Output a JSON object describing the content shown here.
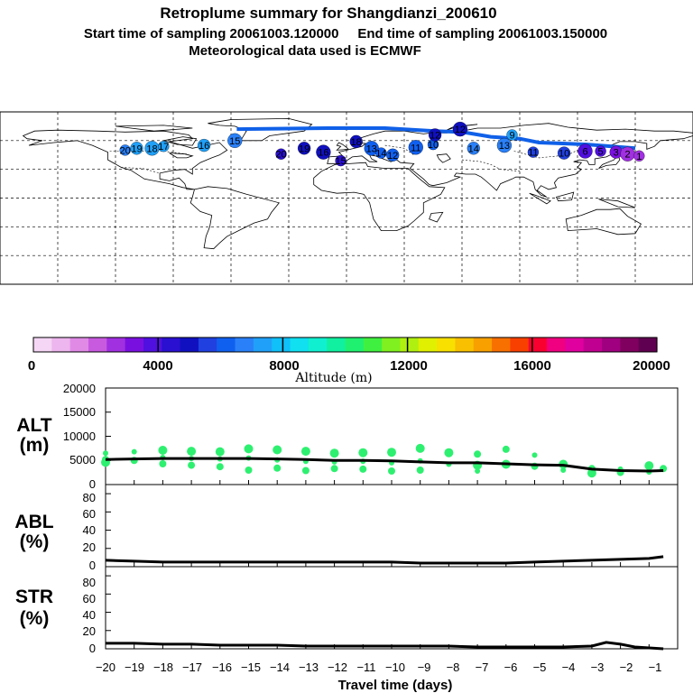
{
  "title": {
    "line1": "Retroplume summary for Shangdianzi_200610",
    "line2": "Start time of sampling 20061003.120000     End time of sampling 20061003.150000",
    "line3": "Meteorological data used is ECMWF"
  },
  "map": {
    "plume_points": [
      {
        "label": "20",
        "lon": -115,
        "lat": 50,
        "alt": 7000
      },
      {
        "label": "19",
        "lon": -109,
        "lat": 52,
        "alt": 7200
      },
      {
        "label": "18",
        "lon": -101,
        "lat": 52,
        "alt": 7100
      },
      {
        "label": "17",
        "lon": -95,
        "lat": 54,
        "alt": 7300
      },
      {
        "label": "16",
        "lon": -74,
        "lat": 55,
        "alt": 7200
      },
      {
        "label": "15",
        "lon": -58,
        "lat": 60,
        "alt": 7000
      },
      {
        "label": "20",
        "lon": -34,
        "lat": 46,
        "alt": 4400
      },
      {
        "label": "19",
        "lon": -22,
        "lat": 52,
        "alt": 5200
      },
      {
        "label": "16",
        "lon": -12,
        "lat": 48,
        "alt": 5000
      },
      {
        "label": "15",
        "lon": -3,
        "lat": 39,
        "alt": 4700
      },
      {
        "label": "18",
        "lon": 5,
        "lat": 59,
        "alt": 4900
      },
      {
        "label": "13",
        "lon": 13,
        "lat": 52,
        "alt": 6300
      },
      {
        "label": "14",
        "lon": 18,
        "lat": 47,
        "alt": 6000
      },
      {
        "label": "12",
        "lon": 24,
        "lat": 45,
        "alt": 5900
      },
      {
        "label": "11",
        "lon": 36,
        "lat": 53,
        "alt": 6000
      },
      {
        "label": "10",
        "lon": 45,
        "lat": 56,
        "alt": 6300
      },
      {
        "label": "12",
        "lon": 46,
        "lat": 66,
        "alt": 5000
      },
      {
        "label": "12",
        "lon": 59,
        "lat": 72,
        "alt": 4800
      },
      {
        "label": "9",
        "lon": 86,
        "lat": 66,
        "alt": 7200
      },
      {
        "label": "14",
        "lon": 66,
        "lat": 52,
        "alt": 6800
      },
      {
        "label": "13",
        "lon": 82,
        "lat": 55,
        "alt": 6500
      },
      {
        "label": "11",
        "lon": 97,
        "lat": 48,
        "alt": 5800
      },
      {
        "label": "10",
        "lon": 113,
        "lat": 47,
        "alt": 5500
      },
      {
        "label": "6",
        "lon": 124,
        "lat": 49,
        "alt": 4000
      },
      {
        "label": "5",
        "lon": 132,
        "lat": 49,
        "alt": 3800
      },
      {
        "label": "3",
        "lon": 140,
        "lat": 48,
        "alt": 3200
      },
      {
        "label": "2",
        "lon": 146,
        "lat": 46,
        "alt": 2900
      },
      {
        "label": "1",
        "lon": 152,
        "lat": 44,
        "alt": 2800
      }
    ]
  },
  "colorbar": {
    "ticks": [
      "0",
      "4000",
      "8000",
      "12000",
      "16000",
      "20000"
    ],
    "label": "Altitude (m)"
  },
  "panels": {
    "alt": {
      "label1": "ALT",
      "label2": "(m)",
      "ticks": [
        "20000",
        "15000",
        "10000",
        "5000",
        "0"
      ]
    },
    "abl": {
      "label1": "ABL",
      "label2": "(%)",
      "ticks": [
        "80",
        "60",
        "40",
        "20",
        "0"
      ]
    },
    "str": {
      "label1": "STR",
      "label2": "(%)",
      "ticks": [
        "80",
        "60",
        "40",
        "20",
        "0"
      ]
    }
  },
  "xaxis": {
    "ticks": [
      "−20",
      "−19",
      "−18",
      "−17",
      "−16",
      "−15",
      "−14",
      "−13",
      "−12",
      "−11",
      "−10",
      "−9",
      "−8",
      "−7",
      "−6",
      "−5",
      "−4",
      "−3",
      "−2",
      "−1"
    ],
    "label": "Travel time (days)"
  },
  "chart_data": [
    {
      "type": "line",
      "title": "ALT (m)",
      "xlabel": "Travel time (days)",
      "ylabel": "ALT (m)",
      "ylim": [
        0,
        20000
      ],
      "x": [
        -20,
        -19,
        -18,
        -17,
        -16,
        -15,
        -14,
        -13,
        -12,
        -11,
        -10,
        -9,
        -8,
        -7,
        -6,
        -5,
        -4,
        -3,
        -2,
        -1,
        -0.5
      ],
      "values": [
        5200,
        5300,
        5400,
        5400,
        5400,
        5400,
        5300,
        5200,
        5000,
        5000,
        4900,
        4700,
        4500,
        4500,
        4300,
        4100,
        4000,
        3200,
        2900,
        2800,
        2900
      ],
      "scatter_x": [
        -20,
        -20,
        -20,
        -19,
        -19,
        -18,
        -18,
        -18,
        -17,
        -17,
        -17,
        -16,
        -16,
        -16,
        -15,
        -15,
        -15,
        -14,
        -14,
        -14,
        -13,
        -13,
        -13,
        -12,
        -12,
        -12,
        -11,
        -11,
        -11,
        -10,
        -10,
        -10,
        -9,
        -9,
        -9,
        -8,
        -8,
        -7,
        -7,
        -7,
        -6,
        -6,
        -5,
        -5,
        -4,
        -4,
        -3,
        -3,
        -2,
        -2,
        -1,
        -1,
        -0.5
      ],
      "scatter_y": [
        6500,
        5200,
        4600,
        6800,
        5000,
        7100,
        5600,
        4300,
        6900,
        5400,
        4000,
        6800,
        5300,
        3700,
        7400,
        5500,
        3000,
        7200,
        5100,
        3400,
        6900,
        4800,
        2900,
        6500,
        4700,
        3300,
        6600,
        4800,
        3200,
        6700,
        4500,
        2800,
        7500,
        4900,
        3000,
        6600,
        4200,
        6300,
        4000,
        2800,
        7300,
        4200,
        6100,
        3800,
        4200,
        3000,
        3300,
        2400,
        3200,
        2500,
        3900,
        2600,
        3300
      ]
    },
    {
      "type": "line",
      "title": "ABL (%)",
      "xlabel": "Travel time (days)",
      "ylabel": "ABL (%)",
      "ylim": [
        0,
        90
      ],
      "x": [
        -20,
        -19,
        -18,
        -17,
        -16,
        -15,
        -14,
        -13,
        -12,
        -11,
        -10,
        -9,
        -8,
        -7,
        -6,
        -5,
        -4,
        -3,
        -2,
        -1,
        -0.5
      ],
      "values": [
        7,
        6,
        5,
        5,
        5,
        5,
        5,
        5,
        5,
        5,
        5,
        4,
        4,
        4,
        4,
        5,
        6,
        7,
        8,
        9,
        11
      ]
    },
    {
      "type": "line",
      "title": "STR (%)",
      "xlabel": "Travel time (days)",
      "ylabel": "STR (%)",
      "ylim": [
        0,
        90
      ],
      "x": [
        -20,
        -19,
        -18,
        -17,
        -16,
        -15,
        -14,
        -13,
        -12,
        -11,
        -10,
        -9,
        -8,
        -7,
        -6,
        -5,
        -4,
        -3,
        -2.5,
        -2,
        -1.5,
        -1,
        -0.5
      ],
      "values": [
        6,
        6,
        5,
        5,
        4,
        4,
        4,
        3,
        3,
        3,
        3,
        3,
        3,
        2,
        2,
        2,
        2,
        3,
        7,
        5,
        2,
        1,
        0
      ]
    }
  ]
}
